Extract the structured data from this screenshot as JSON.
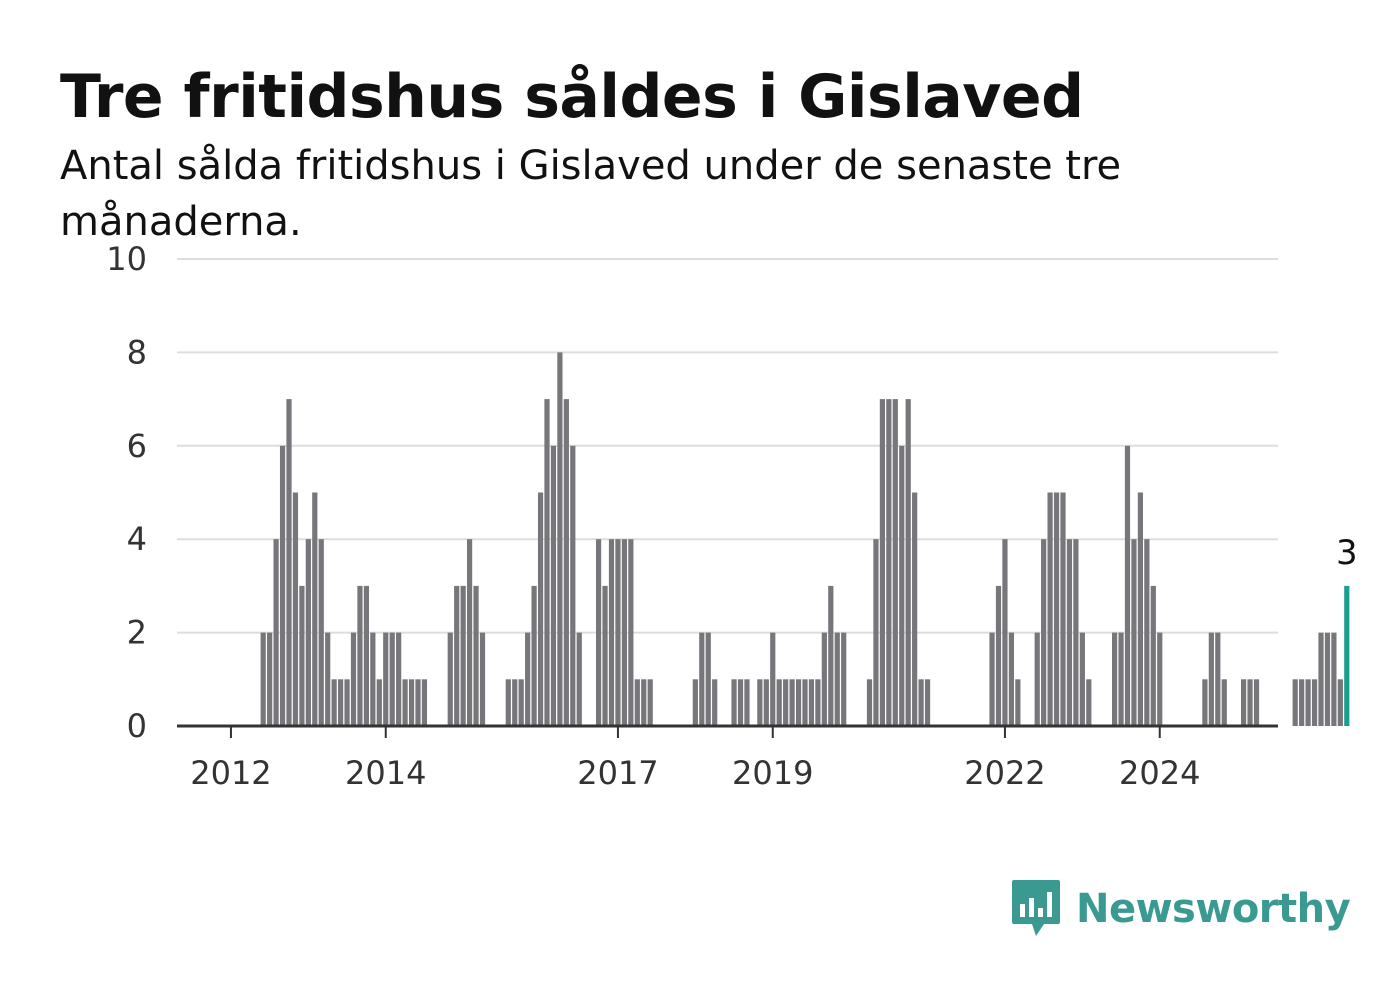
{
  "title": "Tre fritidshus såldes i Gislaved",
  "subtitle": "Antal sålda fritidshus i Gislaved under de senaste tre månaderna.",
  "brand": {
    "name": "Newsworthy",
    "icon": "newsworthy-logo-icon",
    "color": "#3a9a92"
  },
  "chart_data": {
    "type": "bar",
    "xlabel": "",
    "ylabel": "",
    "ylim": [
      0,
      10
    ],
    "yticks": [
      0,
      2,
      4,
      6,
      8,
      10
    ],
    "xticks": [
      {
        "label": "2012",
        "month": "2012-01"
      },
      {
        "label": "2014",
        "month": "2014-01"
      },
      {
        "label": "2017",
        "month": "2017-01"
      },
      {
        "label": "2019",
        "month": "2019-01"
      },
      {
        "label": "2022",
        "month": "2022-01"
      },
      {
        "label": "2024",
        "month": "2024-01"
      }
    ],
    "grid": true,
    "bar_color": "#76767b",
    "highlight_color": "#1a9e8e",
    "highlight_label": "3",
    "start_month": "2011-10",
    "values": [
      0,
      0,
      0,
      0,
      0,
      0,
      0,
      0,
      2,
      2,
      4,
      6,
      7,
      5,
      3,
      4,
      5,
      4,
      2,
      1,
      1,
      1,
      2,
      3,
      3,
      2,
      1,
      2,
      2,
      2,
      1,
      1,
      1,
      1,
      0,
      0,
      0,
      2,
      3,
      3,
      4,
      3,
      2,
      0,
      0,
      0,
      1,
      1,
      1,
      2,
      3,
      5,
      7,
      6,
      8,
      7,
      6,
      2,
      0,
      0,
      4,
      3,
      4,
      4,
      4,
      4,
      1,
      1,
      1,
      0,
      0,
      0,
      0,
      0,
      0,
      1,
      2,
      2,
      1,
      0,
      0,
      1,
      1,
      1,
      0,
      1,
      1,
      2,
      1,
      1,
      1,
      1,
      1,
      1,
      1,
      2,
      3,
      2,
      2,
      0,
      0,
      0,
      1,
      4,
      7,
      7,
      7,
      6,
      7,
      5,
      1,
      1,
      0,
      0,
      0,
      0,
      0,
      0,
      0,
      0,
      0,
      2,
      3,
      4,
      2,
      1,
      0,
      0,
      2,
      4,
      5,
      5,
      5,
      4,
      4,
      2,
      1,
      0,
      0,
      0,
      2,
      2,
      6,
      4,
      5,
      4,
      3,
      2,
      0,
      0,
      0,
      0,
      0,
      0,
      1,
      2,
      2,
      1,
      0,
      0,
      1,
      1,
      1,
      0,
      0,
      0,
      0,
      0,
      1,
      1,
      1,
      1,
      2,
      2,
      2,
      1,
      3
    ]
  }
}
